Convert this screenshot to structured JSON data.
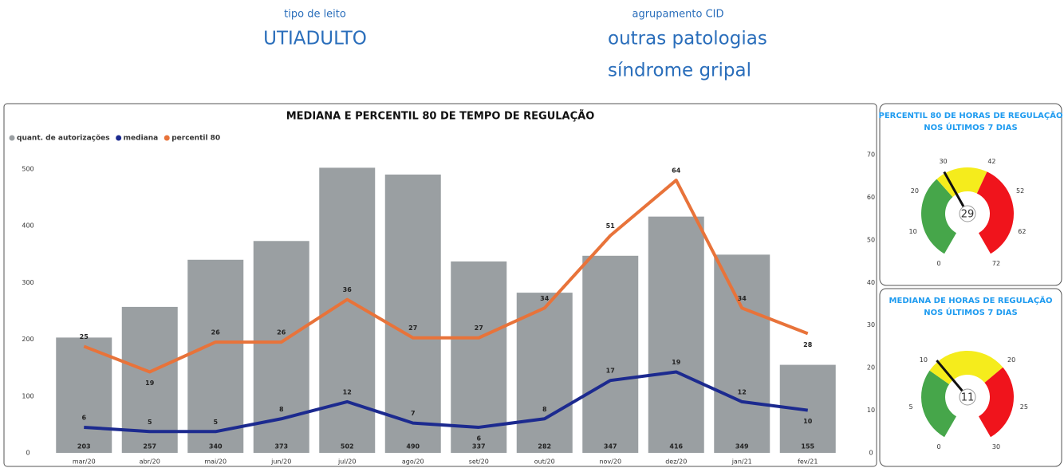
{
  "filters": [
    {
      "label": "tipo de leito",
      "values": [
        "UTIADULTO"
      ]
    },
    {
      "label": "agrupamento CID",
      "values": [
        "outras patologias",
        "síndrome gripal"
      ]
    }
  ],
  "chart_data": [
    {
      "type": "bar",
      "title": "MEDIANA E PERCENTIL 80 DE TEMPO DE REGULAÇÃO",
      "categories": [
        "mar/20",
        "abr/20",
        "mai/20",
        "jun/20",
        "jul/20",
        "ago/20",
        "set/20",
        "out/20",
        "nov/20",
        "dez/20",
        "jan/21",
        "fev/21"
      ],
      "series": [
        {
          "name": "quant. de autorizações",
          "type": "bar",
          "color": "#9a9fa2",
          "values": [
            203,
            257,
            340,
            373,
            502,
            490,
            337,
            282,
            347,
            416,
            349,
            155
          ]
        },
        {
          "name": "mediana",
          "type": "line",
          "axis": "y2",
          "color": "#1c2a8f",
          "values": [
            6,
            5,
            5,
            8,
            12,
            7,
            6,
            8,
            17,
            19,
            12,
            10
          ]
        },
        {
          "name": "percentil 80",
          "type": "line",
          "axis": "y2",
          "color": "#e8733a",
          "values": [
            25,
            19,
            26,
            26,
            36,
            27,
            27,
            34,
            51,
            64,
            34,
            28
          ]
        }
      ],
      "ylim": [
        0,
        525
      ],
      "yticks": [
        0,
        100,
        200,
        300,
        400,
        500
      ],
      "y2lim": [
        0,
        70
      ],
      "y2ticks": [
        0,
        10,
        20,
        30,
        40,
        50,
        60,
        70
      ],
      "legend": "top-left"
    },
    {
      "type": "gauge",
      "title": [
        "PERCENTIL 80 DE HORAS DE REGULAÇÃO",
        "NOS ÚLTIMOS 7 DIAS"
      ],
      "value": 29,
      "ylim": [
        0,
        72
      ],
      "yticks": [
        0,
        10,
        20,
        30,
        42,
        52,
        62,
        72
      ],
      "bands": [
        {
          "to": 26,
          "color": "#46a64a"
        },
        {
          "to": 42,
          "color": "#f5ec1c"
        },
        {
          "to": 72,
          "color": "#f0141c"
        }
      ]
    },
    {
      "type": "gauge",
      "title": [
        "MEDIANA DE HORAS DE REGULAÇÃO",
        "NOS ÚLTIMOS 7 DIAS"
      ],
      "value": 11,
      "ylim": [
        0,
        30
      ],
      "yticks": [
        0,
        5,
        10,
        20,
        25,
        30
      ],
      "bands": [
        {
          "to": 9.5,
          "color": "#46a64a"
        },
        {
          "to": 20,
          "color": "#f5ec1c"
        },
        {
          "to": 30,
          "color": "#f0141c"
        }
      ]
    }
  ]
}
